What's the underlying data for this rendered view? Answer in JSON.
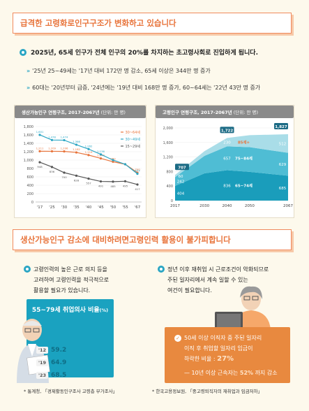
{
  "section1": {
    "title_pre": "급격한 고령화로 ",
    "title_hl": "인구구조가 변화",
    "title_post": "하고 있습니다",
    "lead": "2025년, 65세 인구가 전체 인구의 20%를 차지하는 초고령사회로 진입하게 됩니다.",
    "bullets": [
      "'25년 25~49세는 '17년 대비 172만 명 감소, 65세 이상은 344만 명 증가",
      "60대는 '20년부터 급증, '24년에는 '19년 대비 168만 명 증가, 60~64세는 '22년 43만 명 증가"
    ]
  },
  "chart_left_header": {
    "title": "생산가능인구 연령구조, 2017-2067년",
    "unit": "(단위: 만 명)"
  },
  "chart_right_header": {
    "title": "고령인구 연령구조, 2017-2067년",
    "unit": "(단위: 만 명)"
  },
  "chart_data": [
    {
      "type": "line",
      "title": "생산가능인구 연령구조, 2017-2067년",
      "x": [
        "'17",
        "'25",
        "'30",
        "'35",
        "'40",
        "'45",
        "'50",
        "'55",
        "'67"
      ],
      "ylim": [
        0,
        1800
      ],
      "yticks": [
        0,
        200,
        400,
        600,
        800,
        1000,
        1200,
        1400,
        1600,
        1800
      ],
      "legend_position": "right",
      "series": [
        {
          "name": "30~64세",
          "color": "#e8743b",
          "values": [
            1211,
            1209,
            1206,
            1182,
            1119,
            1040,
            960,
            900,
            700
          ]
        },
        {
          "name": "30~49세",
          "color": "#2ba6c4",
          "values": [
            1601,
            1478,
            1474,
            1366,
            1262,
            1136,
            1000,
            900,
            673
          ]
        },
        {
          "name": "15~29세",
          "color": "#555555",
          "values": [
            948,
            836,
            700,
            628,
            557,
            491,
            485,
            495,
            417
          ]
        }
      ],
      "labels": {
        "30~64세": [
          "1,211",
          "1,209",
          "1,206",
          "1,182",
          "1,119",
          "1,040",
          "960",
          "",
          "700"
        ],
        "30~49세": [
          "1,601",
          "1,478",
          "1,474",
          "1,366",
          "1,262",
          "1,136",
          "",
          "",
          "673"
        ],
        "15~29세": [
          "948",
          "836",
          "700",
          "628",
          "557",
          "491",
          "485",
          "495",
          "417"
        ]
      }
    },
    {
      "type": "area",
      "title": "고령인구 연령구조, 2017-2067년",
      "x": [
        "2017",
        "2030",
        "2040",
        "2050",
        "2067"
      ],
      "x_values": [
        2017,
        2030,
        2040,
        2050,
        2067
      ],
      "ylim": [
        0,
        2000
      ],
      "yticks": [
        0,
        400,
        800,
        1200,
        1600,
        2000
      ],
      "series": [
        {
          "name": "65~74세",
          "color": "#1a9dbb",
          "values": [
            404,
            750,
            836,
            790,
            685
          ]
        },
        {
          "name": "75~84세",
          "color": "#4fbdd4",
          "values": [
            242,
            480,
            657,
            680,
            629
          ]
        },
        {
          "name": "85세+",
          "color": "#a9dde8",
          "values": [
            60,
            130,
            230,
            330,
            512
          ]
        }
      ],
      "totals": {
        "2017": "707",
        "2040": "1,722",
        "2067": "1,827"
      },
      "segment_labels": {
        "65~74세": [
          "404",
          "836",
          "685"
        ],
        "75~84세": [
          "242",
          "657",
          "629"
        ],
        "85세+": [
          "60",
          "230",
          "512"
        ]
      }
    }
  ],
  "section2": {
    "title_pre": "생산가능인구 감소에 대비하려면 ",
    "title_hl": "고령인력 활용이 불가피",
    "title_post": "합니다",
    "left_text": [
      "고령인력의 높은 근로 의지 등을",
      "고려하여 고령인력을 적극적으로",
      "활용할 필요가 있습니다."
    ],
    "right_text": [
      "정년 이후 재취업 시 근로조건이 악화되므로",
      "주된 일자리에서 계속 일할 수 있는",
      "여건이 필요합니다."
    ],
    "will_title": "55~79세 취업의사 비율",
    "will_unit": "(%)",
    "will_rows": [
      {
        "year": "'12",
        "value": "59.2"
      },
      {
        "year": "'19",
        "value": "64.9"
      },
      {
        "year": "'23",
        "value": "68.5"
      }
    ],
    "card": {
      "line1": "50세 이상 이직자 중 주된 일자리",
      "line2": "이직 후 취업할 일자리 임금이",
      "line3_pre": "하락한 비율 : ",
      "line3_pct": "27%",
      "line4_pre": "10년 이상 근속자는 ",
      "line4_pct": "52%",
      "line4_post": " 까지 감소"
    },
    "source_left": "* 통계청, 「경제활동인구조사 고령층 부가조사」",
    "source_right": "* 한국고용정보원, 「중고령퇴직자의 재취업과 임금저하」"
  },
  "colors": {
    "accent": "#e8743b",
    "teal": "#2ba6c4",
    "card_orange": "#e8893f"
  }
}
